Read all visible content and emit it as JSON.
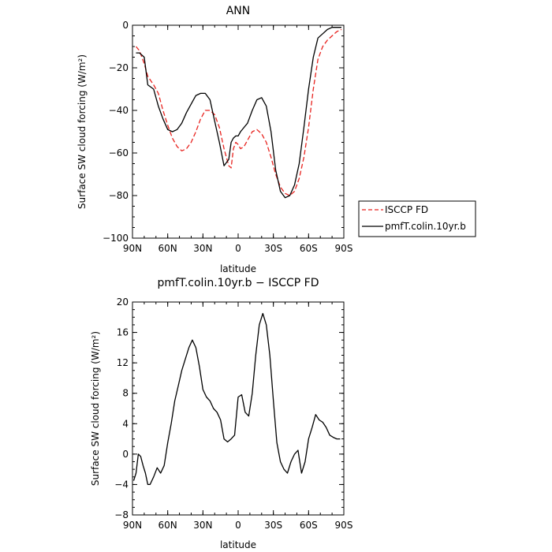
{
  "chart_data": [
    {
      "type": "line",
      "title": "ANN",
      "xlabel": "latitude",
      "ylabel": "Surface SW cloud forcing (W/m²)",
      "xlim": [
        90,
        -90
      ],
      "ylim": [
        -100,
        0
      ],
      "xticks": [
        90,
        60,
        30,
        0,
        -30,
        -60,
        -90
      ],
      "xtick_labels": [
        "90N",
        "60N",
        "30N",
        "0",
        "30S",
        "60S",
        "90S"
      ],
      "yticks": [
        0,
        -20,
        -40,
        -60,
        -80,
        -100
      ],
      "ytick_labels": [
        "0",
        "−20",
        "−40",
        "−60",
        "−80",
        "−100"
      ],
      "grid": false,
      "legend_placement": "right, outside plot",
      "series": [
        {
          "name": "ISCCP FD",
          "color": "#e8231f",
          "dash": "dashed",
          "x": [
            87,
            84,
            80,
            77,
            72,
            68,
            64,
            60,
            56,
            52,
            48,
            44,
            40,
            36,
            32,
            28,
            24,
            20,
            16,
            12,
            8,
            6,
            4,
            2,
            0,
            -2,
            -5,
            -8,
            -12,
            -16,
            -20,
            -24,
            -28,
            -32,
            -36,
            -40,
            -44,
            -48,
            -52,
            -56,
            -60,
            -64,
            -68,
            -72,
            -76,
            -80,
            -84,
            -88
          ],
          "y": [
            -10,
            -12,
            -18,
            -24,
            -28,
            -32,
            -40,
            -47,
            -53,
            -57,
            -59,
            -58,
            -55,
            -50,
            -44,
            -40,
            -40,
            -42,
            -48,
            -58,
            -66,
            -67,
            -58,
            -55,
            -56,
            -58,
            -57,
            -54,
            -50,
            -49,
            -51,
            -55,
            -62,
            -70,
            -76,
            -79,
            -80,
            -78,
            -72,
            -62,
            -48,
            -30,
            -16,
            -10,
            -7,
            -5,
            -3,
            -2
          ]
        },
        {
          "name": "pmfT.colin.10yr.b",
          "color": "#000000",
          "dash": "solid",
          "x": [
            87,
            84,
            80,
            77,
            72,
            68,
            64,
            60,
            56,
            52,
            48,
            44,
            40,
            36,
            32,
            28,
            24,
            20,
            16,
            12,
            8,
            6,
            4,
            2,
            0,
            -2,
            -5,
            -8,
            -12,
            -16,
            -20,
            -24,
            -28,
            -32,
            -36,
            -40,
            -44,
            -48,
            -52,
            -56,
            -60,
            -64,
            -68,
            -72,
            -76,
            -80,
            -84,
            -88
          ],
          "y": [
            -13,
            -13,
            -15,
            -28,
            -30,
            -38,
            -44,
            -49,
            -50,
            -49,
            -46,
            -41,
            -37,
            -33,
            -32,
            -32,
            -35,
            -45,
            -55,
            -66,
            -63,
            -55,
            -53,
            -52,
            -52,
            -50,
            -48,
            -46,
            -40,
            -35,
            -34,
            -38,
            -50,
            -68,
            -78,
            -81,
            -80,
            -75,
            -65,
            -48,
            -30,
            -15,
            -6,
            -4,
            -2,
            -1,
            -1,
            -1
          ]
        }
      ]
    },
    {
      "type": "line",
      "title": "pmfT.colin.10yr.b − ISCCP FD",
      "xlabel": "latitude",
      "ylabel": "Surface SW cloud forcing (W/m²)",
      "xlim": [
        90,
        -90
      ],
      "ylim": [
        -8,
        20
      ],
      "xticks": [
        90,
        60,
        30,
        0,
        -30,
        -60,
        -90
      ],
      "xtick_labels": [
        "90N",
        "60N",
        "30N",
        "0",
        "30S",
        "60S",
        "90S"
      ],
      "yticks": [
        20,
        16,
        12,
        8,
        4,
        0,
        -4,
        -8
      ],
      "ytick_labels": [
        "20",
        "16",
        "12",
        "8",
        "4",
        "0",
        "−4",
        "−8"
      ],
      "grid": false,
      "series": [
        {
          "name": "",
          "color": "#000000",
          "dash": "solid",
          "x": [
            89,
            87,
            85,
            83,
            81,
            79,
            77,
            75,
            72,
            69,
            66,
            63,
            60,
            57,
            54,
            51,
            48,
            45,
            42,
            39,
            36,
            33,
            30,
            27,
            24,
            21,
            18,
            15,
            12,
            9,
            6,
            3,
            0,
            -3,
            -6,
            -9,
            -12,
            -15,
            -18,
            -21,
            -24,
            -27,
            -30,
            -33,
            -36,
            -39,
            -42,
            -45,
            -48,
            -51,
            -54,
            -57,
            -60,
            -63,
            -66,
            -69,
            -72,
            -75,
            -78,
            -81,
            -84,
            -87
          ],
          "y": [
            -3.5,
            -2.5,
            0,
            -0.3,
            -1.5,
            -2.5,
            -4,
            -4,
            -3,
            -1.8,
            -2.5,
            -1.5,
            1.5,
            4,
            7,
            9,
            11,
            12.5,
            14,
            15,
            14,
            11.5,
            8.5,
            7.5,
            7,
            6,
            5.5,
            4.5,
            2,
            1.6,
            2,
            2.5,
            7.5,
            7.8,
            5.5,
            5,
            8,
            13,
            17,
            18.5,
            17,
            13,
            7,
            1.5,
            -1,
            -2,
            -2.5,
            -1,
            0,
            0.5,
            -2.5,
            -1,
            2,
            3.5,
            5.2,
            4.5,
            4.2,
            3.5,
            2.5,
            2.2,
            2,
            2
          ]
        }
      ]
    }
  ]
}
